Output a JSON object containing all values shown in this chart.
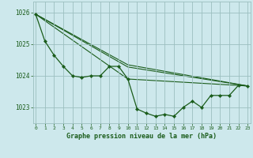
{
  "title": "Graphe pression niveau de la mer (hPa)",
  "bg_color": "#cde8ec",
  "grid_color": "#9bbfbf",
  "line_color": "#1a5c1a",
  "xlim": [
    -0.3,
    23.3
  ],
  "ylim": [
    1022.5,
    1026.35
  ],
  "yticks": [
    1023,
    1024,
    1025,
    1026
  ],
  "xticks": [
    0,
    1,
    2,
    3,
    4,
    5,
    6,
    7,
    8,
    9,
    10,
    11,
    12,
    13,
    14,
    15,
    16,
    17,
    18,
    19,
    20,
    21,
    22,
    23
  ],
  "main_series_x": [
    0,
    1,
    2,
    3,
    4,
    5,
    6,
    7,
    8,
    9,
    10,
    11,
    12,
    13,
    14,
    15,
    16,
    17,
    18,
    19,
    20,
    21,
    22,
    23
  ],
  "main_series_y": [
    1025.95,
    1025.1,
    1024.65,
    1024.3,
    1024.0,
    1023.95,
    1024.0,
    1024.0,
    1024.3,
    1024.3,
    1023.9,
    1022.95,
    1022.82,
    1022.72,
    1022.78,
    1022.72,
    1023.0,
    1023.2,
    1023.0,
    1023.38,
    1023.38,
    1023.38,
    1023.7,
    1023.68
  ],
  "straight_lines": [
    {
      "x": [
        0,
        10,
        23
      ],
      "y": [
        1025.95,
        1023.9,
        1023.68
      ]
    },
    {
      "x": [
        0,
        10,
        23
      ],
      "y": [
        1025.95,
        1024.28,
        1023.68
      ]
    },
    {
      "x": [
        0,
        10,
        23
      ],
      "y": [
        1025.95,
        1024.35,
        1023.68
      ]
    }
  ]
}
